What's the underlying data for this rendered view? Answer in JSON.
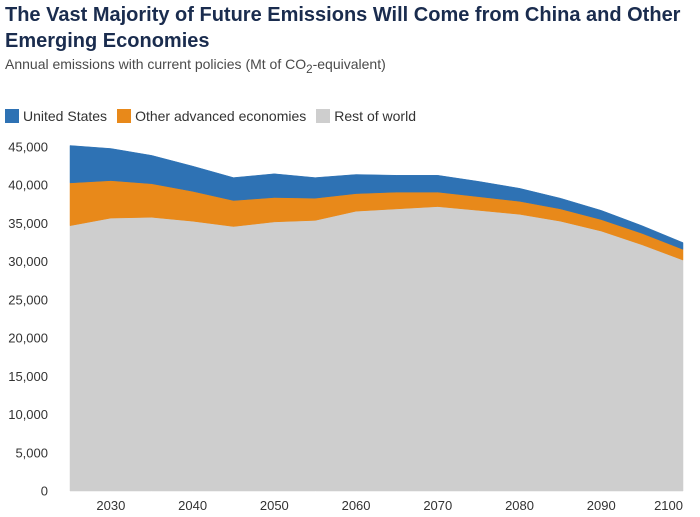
{
  "title": "The Vast Majority of Future Emissions Will Come from China and Other Emerging Economies",
  "subtitle_pre": "Annual emissions with current policies (Mt of CO",
  "subtitle_sub": "2",
  "subtitle_post": "-equivalent)",
  "chart_data": {
    "type": "area",
    "stacked": true,
    "x": [
      2025,
      2030,
      2035,
      2040,
      2045,
      2050,
      2055,
      2060,
      2065,
      2070,
      2075,
      2080,
      2085,
      2090,
      2095,
      2100
    ],
    "x_ticks": [
      2030,
      2040,
      2050,
      2060,
      2070,
      2080,
      2090,
      2100
    ],
    "x_tick_labels": [
      "2030",
      "2040",
      "2050",
      "2060",
      "2070",
      "2080",
      "2090",
      "2100"
    ],
    "xlim": [
      2025,
      2100
    ],
    "ylim": [
      0,
      45000
    ],
    "y_ticks": [
      0,
      5000,
      10000,
      15000,
      20000,
      25000,
      30000,
      35000,
      40000,
      45000
    ],
    "y_tick_labels": [
      "0",
      "5,000",
      "10,000",
      "15,000",
      "20,000",
      "25,000",
      "30,000",
      "35,000",
      "40,000",
      "45,000"
    ],
    "legend_position": "top-left",
    "grid": false,
    "series": [
      {
        "name": "Rest of world",
        "color": "#cecece",
        "values": [
          34700,
          35700,
          35800,
          35300,
          34600,
          35200,
          35400,
          36600,
          36900,
          37200,
          36700,
          36200,
          35300,
          34000,
          32200,
          30200
        ]
      },
      {
        "name": "Other advanced economies",
        "color": "#e8891a",
        "values": [
          5600,
          4900,
          4400,
          3900,
          3400,
          3200,
          2900,
          2300,
          2200,
          1900,
          1800,
          1700,
          1600,
          1500,
          1500,
          1400
        ]
      },
      {
        "name": "United States",
        "color": "#2e72b4",
        "values": [
          4900,
          4200,
          3700,
          3300,
          3000,
          3100,
          2700,
          2500,
          2200,
          2200,
          2000,
          1700,
          1400,
          1200,
          1000,
          900
        ]
      }
    ],
    "legend_order": [
      "United States",
      "Other advanced economies",
      "Rest of world"
    ]
  }
}
